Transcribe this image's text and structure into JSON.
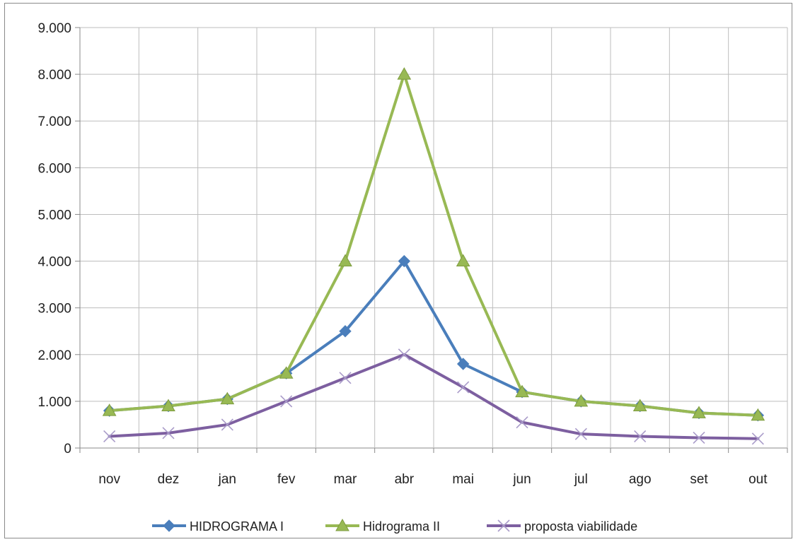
{
  "chart_data": {
    "type": "line",
    "title": "",
    "xlabel": "",
    "ylabel": "",
    "categories": [
      "nov",
      "dez",
      "jan",
      "fev",
      "mar",
      "abr",
      "mai",
      "jun",
      "jul",
      "ago",
      "set",
      "out"
    ],
    "ylim": [
      0,
      9000
    ],
    "yticks": [
      0,
      1000,
      2000,
      3000,
      4000,
      5000,
      6000,
      7000,
      8000,
      9000
    ],
    "ytick_labels": [
      "0",
      "1.000",
      "2.000",
      "3.000",
      "4.000",
      "5.000",
      "6.000",
      "7.000",
      "8.000",
      "9.000"
    ],
    "grid": true,
    "legend_position": "bottom",
    "series": [
      {
        "name": "HIDROGRAMA I",
        "color": "#4a7ebb",
        "marker": "diamond",
        "values": [
          800,
          900,
          1050,
          1600,
          2500,
          4000,
          1800,
          1200,
          1000,
          900,
          750,
          700
        ]
      },
      {
        "name": "Hidrograma II",
        "color": "#98b954",
        "marker": "triangle",
        "values": [
          800,
          900,
          1050,
          1600,
          4000,
          8000,
          4000,
          1200,
          1000,
          900,
          750,
          700
        ]
      },
      {
        "name": "proposta viabilidade",
        "color": "#7d5fa0",
        "marker": "x",
        "values": [
          250,
          320,
          500,
          1000,
          1500,
          2000,
          1300,
          550,
          300,
          250,
          220,
          200
        ]
      }
    ]
  }
}
